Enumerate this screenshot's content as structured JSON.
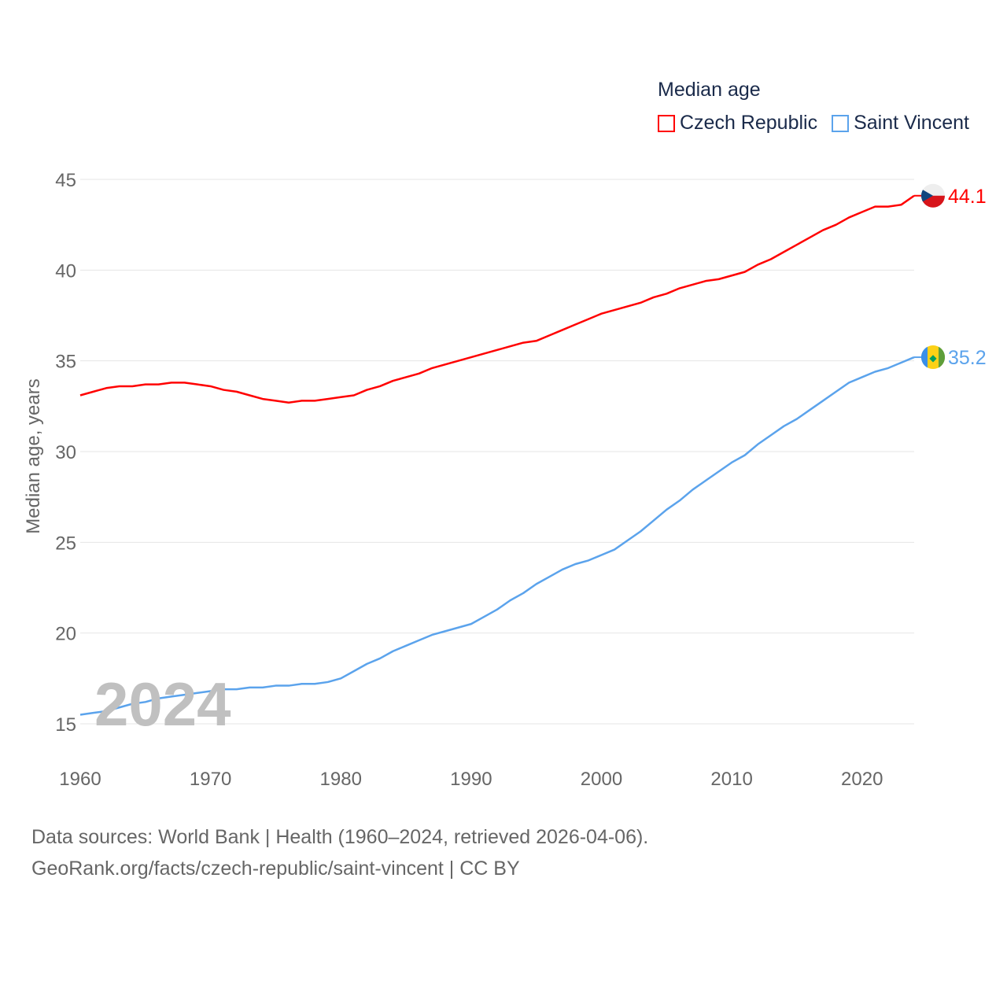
{
  "chart_data": {
    "type": "line",
    "title": "Median age",
    "xlabel": "",
    "ylabel": "Median age, years",
    "xlim": [
      1960,
      2024
    ],
    "ylim": [
      15,
      45
    ],
    "x_ticks": [
      "1960",
      "1970",
      "1980",
      "1990",
      "2000",
      "2010",
      "2020"
    ],
    "y_ticks": [
      "15",
      "20",
      "25",
      "30",
      "35",
      "40",
      "45"
    ],
    "grid": true,
    "legend_position": "top-right",
    "watermark": "2024",
    "x": [
      1960,
      1961,
      1962,
      1963,
      1964,
      1965,
      1966,
      1967,
      1968,
      1969,
      1970,
      1971,
      1972,
      1973,
      1974,
      1975,
      1976,
      1977,
      1978,
      1979,
      1980,
      1981,
      1982,
      1983,
      1984,
      1985,
      1986,
      1987,
      1988,
      1989,
      1990,
      1991,
      1992,
      1993,
      1994,
      1995,
      1996,
      1997,
      1998,
      1999,
      2000,
      2001,
      2002,
      2003,
      2004,
      2005,
      2006,
      2007,
      2008,
      2009,
      2010,
      2011,
      2012,
      2013,
      2014,
      2015,
      2016,
      2017,
      2018,
      2019,
      2020,
      2021,
      2022,
      2023,
      2024
    ],
    "series": [
      {
        "name": "Czech Republic",
        "color": "#ff0000",
        "end_label": "44.1",
        "values": [
          33.1,
          33.3,
          33.5,
          33.6,
          33.6,
          33.7,
          33.7,
          33.8,
          33.8,
          33.7,
          33.6,
          33.4,
          33.3,
          33.1,
          32.9,
          32.8,
          32.7,
          32.8,
          32.8,
          32.9,
          33.0,
          33.1,
          33.4,
          33.6,
          33.9,
          34.1,
          34.3,
          34.6,
          34.8,
          35.0,
          35.2,
          35.4,
          35.6,
          35.8,
          36.0,
          36.1,
          36.4,
          36.7,
          37.0,
          37.3,
          37.6,
          37.8,
          38.0,
          38.2,
          38.5,
          38.7,
          39.0,
          39.2,
          39.4,
          39.5,
          39.7,
          39.9,
          40.3,
          40.6,
          41.0,
          41.4,
          41.8,
          42.2,
          42.5,
          42.9,
          43.2,
          43.5,
          43.5,
          43.6,
          44.1
        ]
      },
      {
        "name": "Saint Vincent",
        "color": "#5ba3ec",
        "end_label": "35.2",
        "values": [
          15.5,
          15.6,
          15.7,
          15.9,
          16.1,
          16.2,
          16.4,
          16.5,
          16.6,
          16.7,
          16.8,
          16.9,
          16.9,
          17.0,
          17.0,
          17.1,
          17.1,
          17.2,
          17.2,
          17.3,
          17.5,
          17.9,
          18.3,
          18.6,
          19.0,
          19.3,
          19.6,
          19.9,
          20.1,
          20.3,
          20.5,
          20.9,
          21.3,
          21.8,
          22.2,
          22.7,
          23.1,
          23.5,
          23.8,
          24.0,
          24.3,
          24.6,
          25.1,
          25.6,
          26.2,
          26.8,
          27.3,
          27.9,
          28.4,
          28.9,
          29.4,
          29.8,
          30.4,
          30.9,
          31.4,
          31.8,
          32.3,
          32.8,
          33.3,
          33.8,
          34.1,
          34.4,
          34.6,
          34.9,
          35.2
        ]
      }
    ]
  },
  "footer": {
    "line1": "Data sources: World Bank | Health (1960–2024, retrieved 2026-04-06).",
    "line2": "GeoRank.org/facts/czech-republic/saint-vincent | CC BY"
  }
}
